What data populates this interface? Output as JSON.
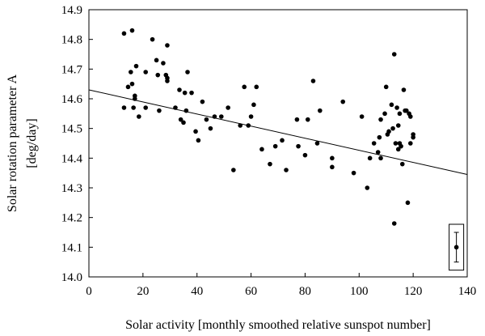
{
  "chart_data": {
    "type": "scatter",
    "title": "",
    "xlabel": "Solar activity [monthly smoothed relative sunspot number]",
    "ylabel_line1": "Solar rotation parameter A",
    "ylabel_line2": "[deg/day]",
    "xlim": [
      0,
      140
    ],
    "ylim": [
      14.0,
      14.9
    ],
    "xticks": [
      "0",
      "20",
      "40",
      "60",
      "80",
      "100",
      "120",
      "140"
    ],
    "yticks": [
      "14.0",
      "14.1",
      "14.2",
      "14.3",
      "14.4",
      "14.5",
      "14.6",
      "14.7",
      "14.8",
      "14.9"
    ],
    "grid": false,
    "points": [
      [
        13,
        14.57
      ],
      [
        13,
        14.82
      ],
      [
        14.5,
        14.64
      ],
      [
        15.5,
        14.69
      ],
      [
        16,
        14.83
      ],
      [
        16,
        14.65
      ],
      [
        16.5,
        14.57
      ],
      [
        17,
        14.61
      ],
      [
        17,
        14.6
      ],
      [
        17.5,
        14.71
      ],
      [
        18.5,
        14.54
      ],
      [
        21,
        14.69
      ],
      [
        21,
        14.57
      ],
      [
        23.5,
        14.8
      ],
      [
        25,
        14.73
      ],
      [
        25.5,
        14.68
      ],
      [
        26,
        14.56
      ],
      [
        27.5,
        14.72
      ],
      [
        28.5,
        14.68
      ],
      [
        29,
        14.78
      ],
      [
        29,
        14.67
      ],
      [
        29,
        14.66
      ],
      [
        32,
        14.57
      ],
      [
        33.5,
        14.63
      ],
      [
        34,
        14.53
      ],
      [
        35,
        14.52
      ],
      [
        35.5,
        14.62
      ],
      [
        36,
        14.56
      ],
      [
        36.5,
        14.69
      ],
      [
        38,
        14.62
      ],
      [
        39.5,
        14.49
      ],
      [
        40.5,
        14.46
      ],
      [
        42,
        14.59
      ],
      [
        43.5,
        14.53
      ],
      [
        45,
        14.5
      ],
      [
        46.5,
        14.54
      ],
      [
        49,
        14.54
      ],
      [
        51.5,
        14.57
      ],
      [
        53.5,
        14.36
      ],
      [
        56,
        14.51
      ],
      [
        57.5,
        14.64
      ],
      [
        59,
        14.51
      ],
      [
        60,
        14.54
      ],
      [
        61,
        14.58
      ],
      [
        62,
        14.64
      ],
      [
        64,
        14.43
      ],
      [
        67,
        14.38
      ],
      [
        69,
        14.44
      ],
      [
        71.5,
        14.46
      ],
      [
        73,
        14.36
      ],
      [
        77,
        14.53
      ],
      [
        77.5,
        14.44
      ],
      [
        80,
        14.41
      ],
      [
        81,
        14.53
      ],
      [
        83,
        14.66
      ],
      [
        84.5,
        14.45
      ],
      [
        85.5,
        14.56
      ],
      [
        90,
        14.4
      ],
      [
        90,
        14.37
      ],
      [
        94,
        14.59
      ],
      [
        98,
        14.35
      ],
      [
        101,
        14.54
      ],
      [
        103,
        14.3
      ],
      [
        104,
        14.4
      ],
      [
        105.5,
        14.45
      ],
      [
        107,
        14.42
      ],
      [
        107.5,
        14.47
      ],
      [
        108,
        14.53
      ],
      [
        108,
        14.4
      ],
      [
        109.5,
        14.55
      ],
      [
        110,
        14.64
      ],
      [
        110.5,
        14.48
      ],
      [
        111,
        14.49
      ],
      [
        112,
        14.58
      ],
      [
        112.5,
        14.5
      ],
      [
        113,
        14.18
      ],
      [
        113,
        14.75
      ],
      [
        113.5,
        14.45
      ],
      [
        114,
        14.57
      ],
      [
        114.5,
        14.51
      ],
      [
        114.5,
        14.43
      ],
      [
        115,
        14.55
      ],
      [
        115,
        14.45
      ],
      [
        115.5,
        14.44
      ],
      [
        116,
        14.38
      ],
      [
        116.5,
        14.63
      ],
      [
        117,
        14.56
      ],
      [
        117.5,
        14.56
      ],
      [
        118,
        14.25
      ],
      [
        118.5,
        14.55
      ],
      [
        119,
        14.54
      ],
      [
        119,
        14.45
      ],
      [
        120,
        14.48
      ],
      [
        120,
        14.47
      ]
    ],
    "trendline": {
      "x": [
        0,
        140
      ],
      "y": [
        14.63,
        14.345
      ]
    },
    "error_bar_example": {
      "x": 136,
      "y": 14.1,
      "low": 14.05,
      "high": 14.15
    }
  }
}
